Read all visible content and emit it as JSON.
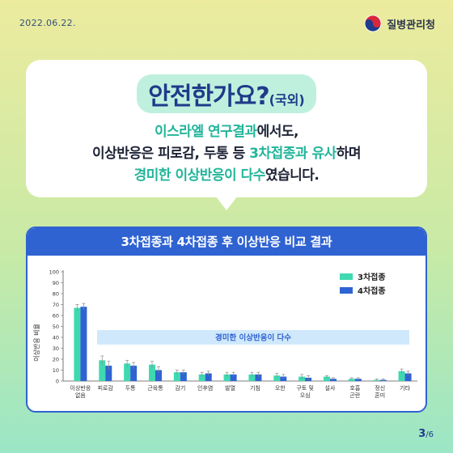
{
  "date": "2022.06.22.",
  "agency": "질병관리청",
  "headline": {
    "main": "안전한가요?",
    "sub": "(국외)"
  },
  "description": {
    "line1_hl": "이스라엘 연구결과",
    "line1_rest": "에서도,",
    "line2_a": "이상반응은 피로감, 두통 등 ",
    "line2_hl": "3차접종과 유사",
    "line2_b": "하며",
    "line3_hl": "경미한 이상반응이 다수",
    "line3_rest": "였습니다."
  },
  "page": {
    "current": "3",
    "total": "/6"
  },
  "colors": {
    "dose3": "#3fd9b0",
    "dose4": "#2f63d2",
    "brand": "#2f63d2",
    "annotation_bg": "#cfe8fb"
  },
  "chart_data": {
    "type": "bar",
    "title": "3차접종과 4차접종 후 이상반응 비교 결과",
    "ylabel": "이상반응 비율",
    "xlabel": "",
    "ylim": [
      0,
      100
    ],
    "yticks": [
      0,
      10,
      20,
      30,
      40,
      50,
      60,
      70,
      80,
      90,
      100
    ],
    "categories": [
      "이상반응\n없음",
      "피로감",
      "두통",
      "근육통",
      "감기",
      "인후염",
      "발열",
      "기침",
      "오한",
      "구토 및\n오심",
      "설사",
      "호흡\n곤란",
      "정신\n혼미",
      "기타"
    ],
    "series": [
      {
        "name": "3차접종",
        "values": [
          67,
          19,
          16,
          15,
          8,
          6,
          6,
          6,
          5,
          4,
          4,
          2,
          1,
          9
        ]
      },
      {
        "name": "4차접종",
        "values": [
          68,
          14,
          14,
          10,
          8,
          7,
          6,
          6,
          4,
          3,
          2,
          2,
          1,
          7
        ]
      }
    ],
    "error": [
      3,
      4,
      3,
      3,
      2,
      2,
      2,
      2,
      2,
      2,
      1,
      1,
      1,
      2
    ],
    "annotation": "경미한 이상반응이 다수",
    "legend_position": "top-right",
    "grid": false
  }
}
